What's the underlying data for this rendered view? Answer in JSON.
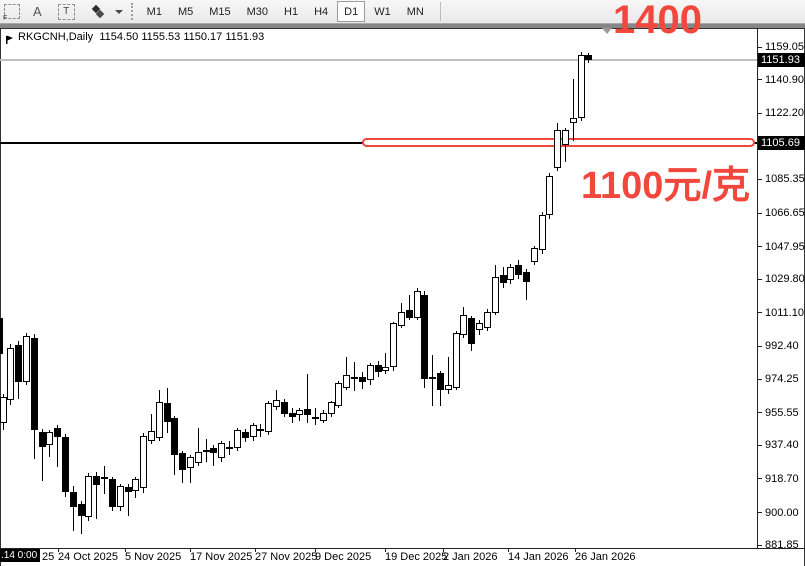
{
  "toolbar": {
    "annotation_label": "A",
    "textbox_label": "T",
    "timeframes": [
      "M1",
      "M5",
      "M15",
      "M30",
      "H1",
      "H4",
      "D1",
      "W1",
      "MN"
    ],
    "selected_timeframe": "D1"
  },
  "chart": {
    "symbol_title": "RKGCNH,Daily",
    "ohlc_display": "1154.50 1155.53 1150.17 1151.93"
  },
  "annotations": {
    "top_text": "1400",
    "level_text": "1100元/克",
    "red_color": "#f2473d"
  },
  "price_scale": {
    "current_price_label": "1151.93",
    "level_price_label": "1105.69",
    "ticks": [
      "1159.05",
      "1140.90",
      "1122.20",
      "1085.35",
      "1066.65",
      "1047.95",
      "1029.80",
      "1011.10",
      "992.40",
      "974.25",
      "955.55",
      "937.40",
      "918.70",
      "900.00",
      "881.85"
    ]
  },
  "time_scale": {
    "corner_label": ".14 0:00",
    "clipped_label": "25",
    "labels": [
      "24 Oct 2025",
      "5 Nov 2025",
      "17 Nov 2025",
      "27 Nov 2025",
      "9 Dec 2025",
      "19 Dec 2025",
      "2 Jan 2026",
      "14 Jan 2026",
      "26 Jan 2026"
    ]
  },
  "chart_data": {
    "type": "candlestick",
    "symbol": "RKGCNH",
    "period": "Daily",
    "current_price": 1151.93,
    "level_line_price": 1105.69,
    "y_axis_range": [
      881.85,
      1159.05
    ],
    "last_candle_ohlc": [
      1154.5,
      1155.53,
      1150.17,
      1151.93
    ],
    "edge_candle_partial": [
      1008,
      1008,
      988,
      988
    ],
    "candles_ohlc": [
      [
        950,
        966,
        946,
        964.5
      ],
      [
        962.5,
        994,
        960,
        991.5
      ],
      [
        993,
        995.5,
        963,
        972.5
      ],
      [
        972.5,
        1000,
        971,
        998.5
      ],
      [
        997,
        999.5,
        930,
        946
      ],
      [
        945,
        946.5,
        917.5,
        936.5
      ],
      [
        937.5,
        946,
        931,
        945
      ],
      [
        947,
        948.5,
        925.5,
        942
      ],
      [
        942,
        943.5,
        908.5,
        911.5
      ],
      [
        911.5,
        915,
        889.5,
        903
      ],
      [
        904.5,
        906.5,
        888,
        898
      ],
      [
        897.5,
        922,
        895,
        920.5
      ],
      [
        920.5,
        922.5,
        896.5,
        915.5
      ],
      [
        919.5,
        926,
        910.5,
        918.5
      ],
      [
        918.5,
        920,
        901,
        903
      ],
      [
        903,
        916,
        901,
        914.5
      ],
      [
        914,
        916,
        898,
        911.5
      ],
      [
        912,
        920,
        908,
        918.5
      ],
      [
        913.5,
        944,
        911,
        942.5
      ],
      [
        940,
        955,
        938,
        945.5
      ],
      [
        941.5,
        968,
        940,
        961.5
      ],
      [
        961,
        969.5,
        944.5,
        950.5
      ],
      [
        952.5,
        953.5,
        921,
        932
      ],
      [
        933,
        934.5,
        916.5,
        923.5
      ],
      [
        924.5,
        932,
        916.5,
        931
      ],
      [
        927.5,
        947,
        926,
        933.5
      ],
      [
        935,
        941,
        928,
        934.5
      ],
      [
        936,
        937.5,
        926,
        933
      ],
      [
        930.5,
        940,
        928,
        938.5
      ],
      [
        936.5,
        940,
        932,
        936.3
      ],
      [
        936,
        947,
        934,
        946
      ],
      [
        945,
        946.5,
        939,
        941.5
      ],
      [
        942,
        950,
        940,
        948.5
      ],
      [
        946,
        949,
        942,
        946.3
      ],
      [
        945,
        962,
        943,
        961
      ],
      [
        958.5,
        968,
        957,
        962.5
      ],
      [
        961.5,
        963,
        953,
        955
      ],
      [
        955.5,
        958,
        950,
        953
      ],
      [
        954,
        958,
        951,
        957
      ],
      [
        957.5,
        977,
        950,
        954
      ],
      [
        953,
        958,
        948.5,
        953.3
      ],
      [
        951,
        957,
        950,
        955.5
      ],
      [
        955,
        962,
        953,
        961.5
      ],
      [
        959.5,
        973,
        958,
        972
      ],
      [
        969.5,
        986.5,
        968,
        976.5
      ],
      [
        975.5,
        984,
        967.5,
        975.2
      ],
      [
        975.5,
        978,
        969,
        972.5
      ],
      [
        973.5,
        983,
        971,
        982
      ],
      [
        982,
        984.5,
        975.5,
        978
      ],
      [
        978.5,
        989,
        977,
        981
      ],
      [
        981,
        1006,
        979,
        1005.5
      ],
      [
        1004,
        1016.5,
        1002.5,
        1011.5
      ],
      [
        1012.5,
        1021,
        1007,
        1008.5
      ],
      [
        1008.5,
        1025,
        1007,
        1023
      ],
      [
        1021,
        1023.5,
        969.5,
        974.5
      ],
      [
        975.5,
        987.5,
        959.5,
        975.2
      ],
      [
        977.5,
        979,
        959,
        968
      ],
      [
        968,
        986.5,
        966,
        971
      ],
      [
        969.5,
        1001,
        968,
        1000
      ],
      [
        998.5,
        1014.5,
        997,
        1010
      ],
      [
        1008,
        1009.5,
        990,
        994
      ],
      [
        1001.5,
        1007,
        999,
        1005.5
      ],
      [
        1002.5,
        1013,
        1001,
        1011.5
      ],
      [
        1011,
        1038,
        1010,
        1031
      ],
      [
        1032,
        1036.5,
        1025,
        1027.5
      ],
      [
        1029.5,
        1038.5,
        1027,
        1036.5
      ],
      [
        1038,
        1040.5,
        1030,
        1032
      ],
      [
        1034,
        1035.5,
        1018,
        1028.5
      ],
      [
        1039.5,
        1048.5,
        1037.5,
        1047
      ],
      [
        1046,
        1067.5,
        1044,
        1065.5
      ],
      [
        1065.5,
        1089,
        1063.5,
        1087.5
      ],
      [
        1091.5,
        1117,
        1090,
        1113
      ],
      [
        1104.5,
        1114,
        1095,
        1113
      ],
      [
        1116.5,
        1141.5,
        1107,
        1119.5
      ],
      [
        1119.5,
        1156.5,
        1118,
        1154.5
      ],
      [
        1154.5,
        1155.53,
        1150.17,
        1151.93
      ]
    ]
  }
}
